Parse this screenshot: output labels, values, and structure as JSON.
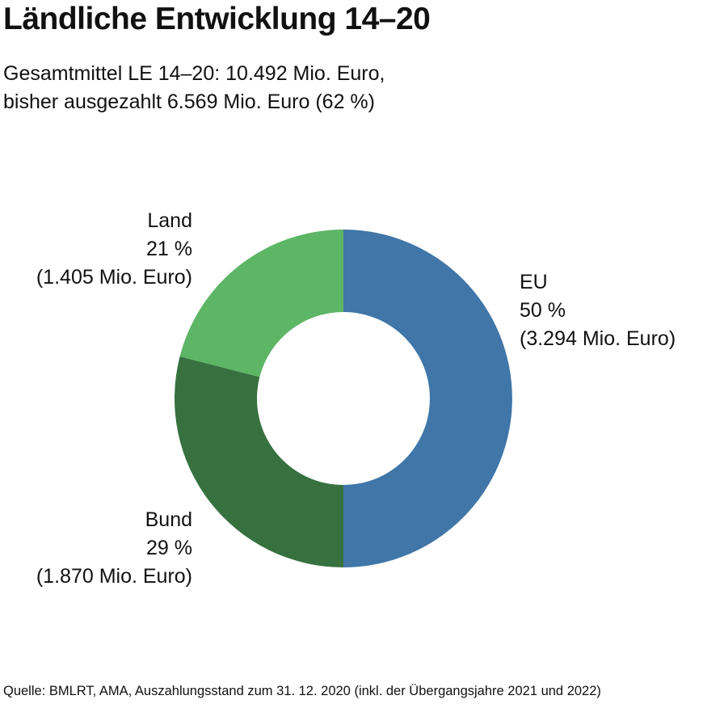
{
  "header": {
    "title": "Ländliche Entwicklung 14–20",
    "subtitle_line1": "Gesamtmittel LE 14–20: 10.492 Mio. Euro,",
    "subtitle_line2": "bisher ausgezahlt 6.569 Mio. Euro (62 %)"
  },
  "chart_data": {
    "type": "pie",
    "variant": "donut",
    "title": "Ländliche Entwicklung 14–20",
    "slices": [
      {
        "name": "EU",
        "percent": 50,
        "percent_label": "50 %",
        "amount_label": "(3.294 Mio. Euro)",
        "value": 3294,
        "color": "#4076a8"
      },
      {
        "name": "Bund",
        "percent": 29,
        "percent_label": "29 %",
        "amount_label": "(1.870 Mio. Euro)",
        "value": 1870,
        "color": "#36713f"
      },
      {
        "name": "Land",
        "percent": 21,
        "percent_label": "21 %",
        "amount_label": "(1.405 Mio. Euro)",
        "value": 1405,
        "color": "#5db566"
      }
    ]
  },
  "footer": {
    "source": "Quelle: BMLRT, AMA, Auszahlungsstand zum 31. 12. 2020 (inkl. der Übergangsjahre 2021 und 2022)"
  }
}
